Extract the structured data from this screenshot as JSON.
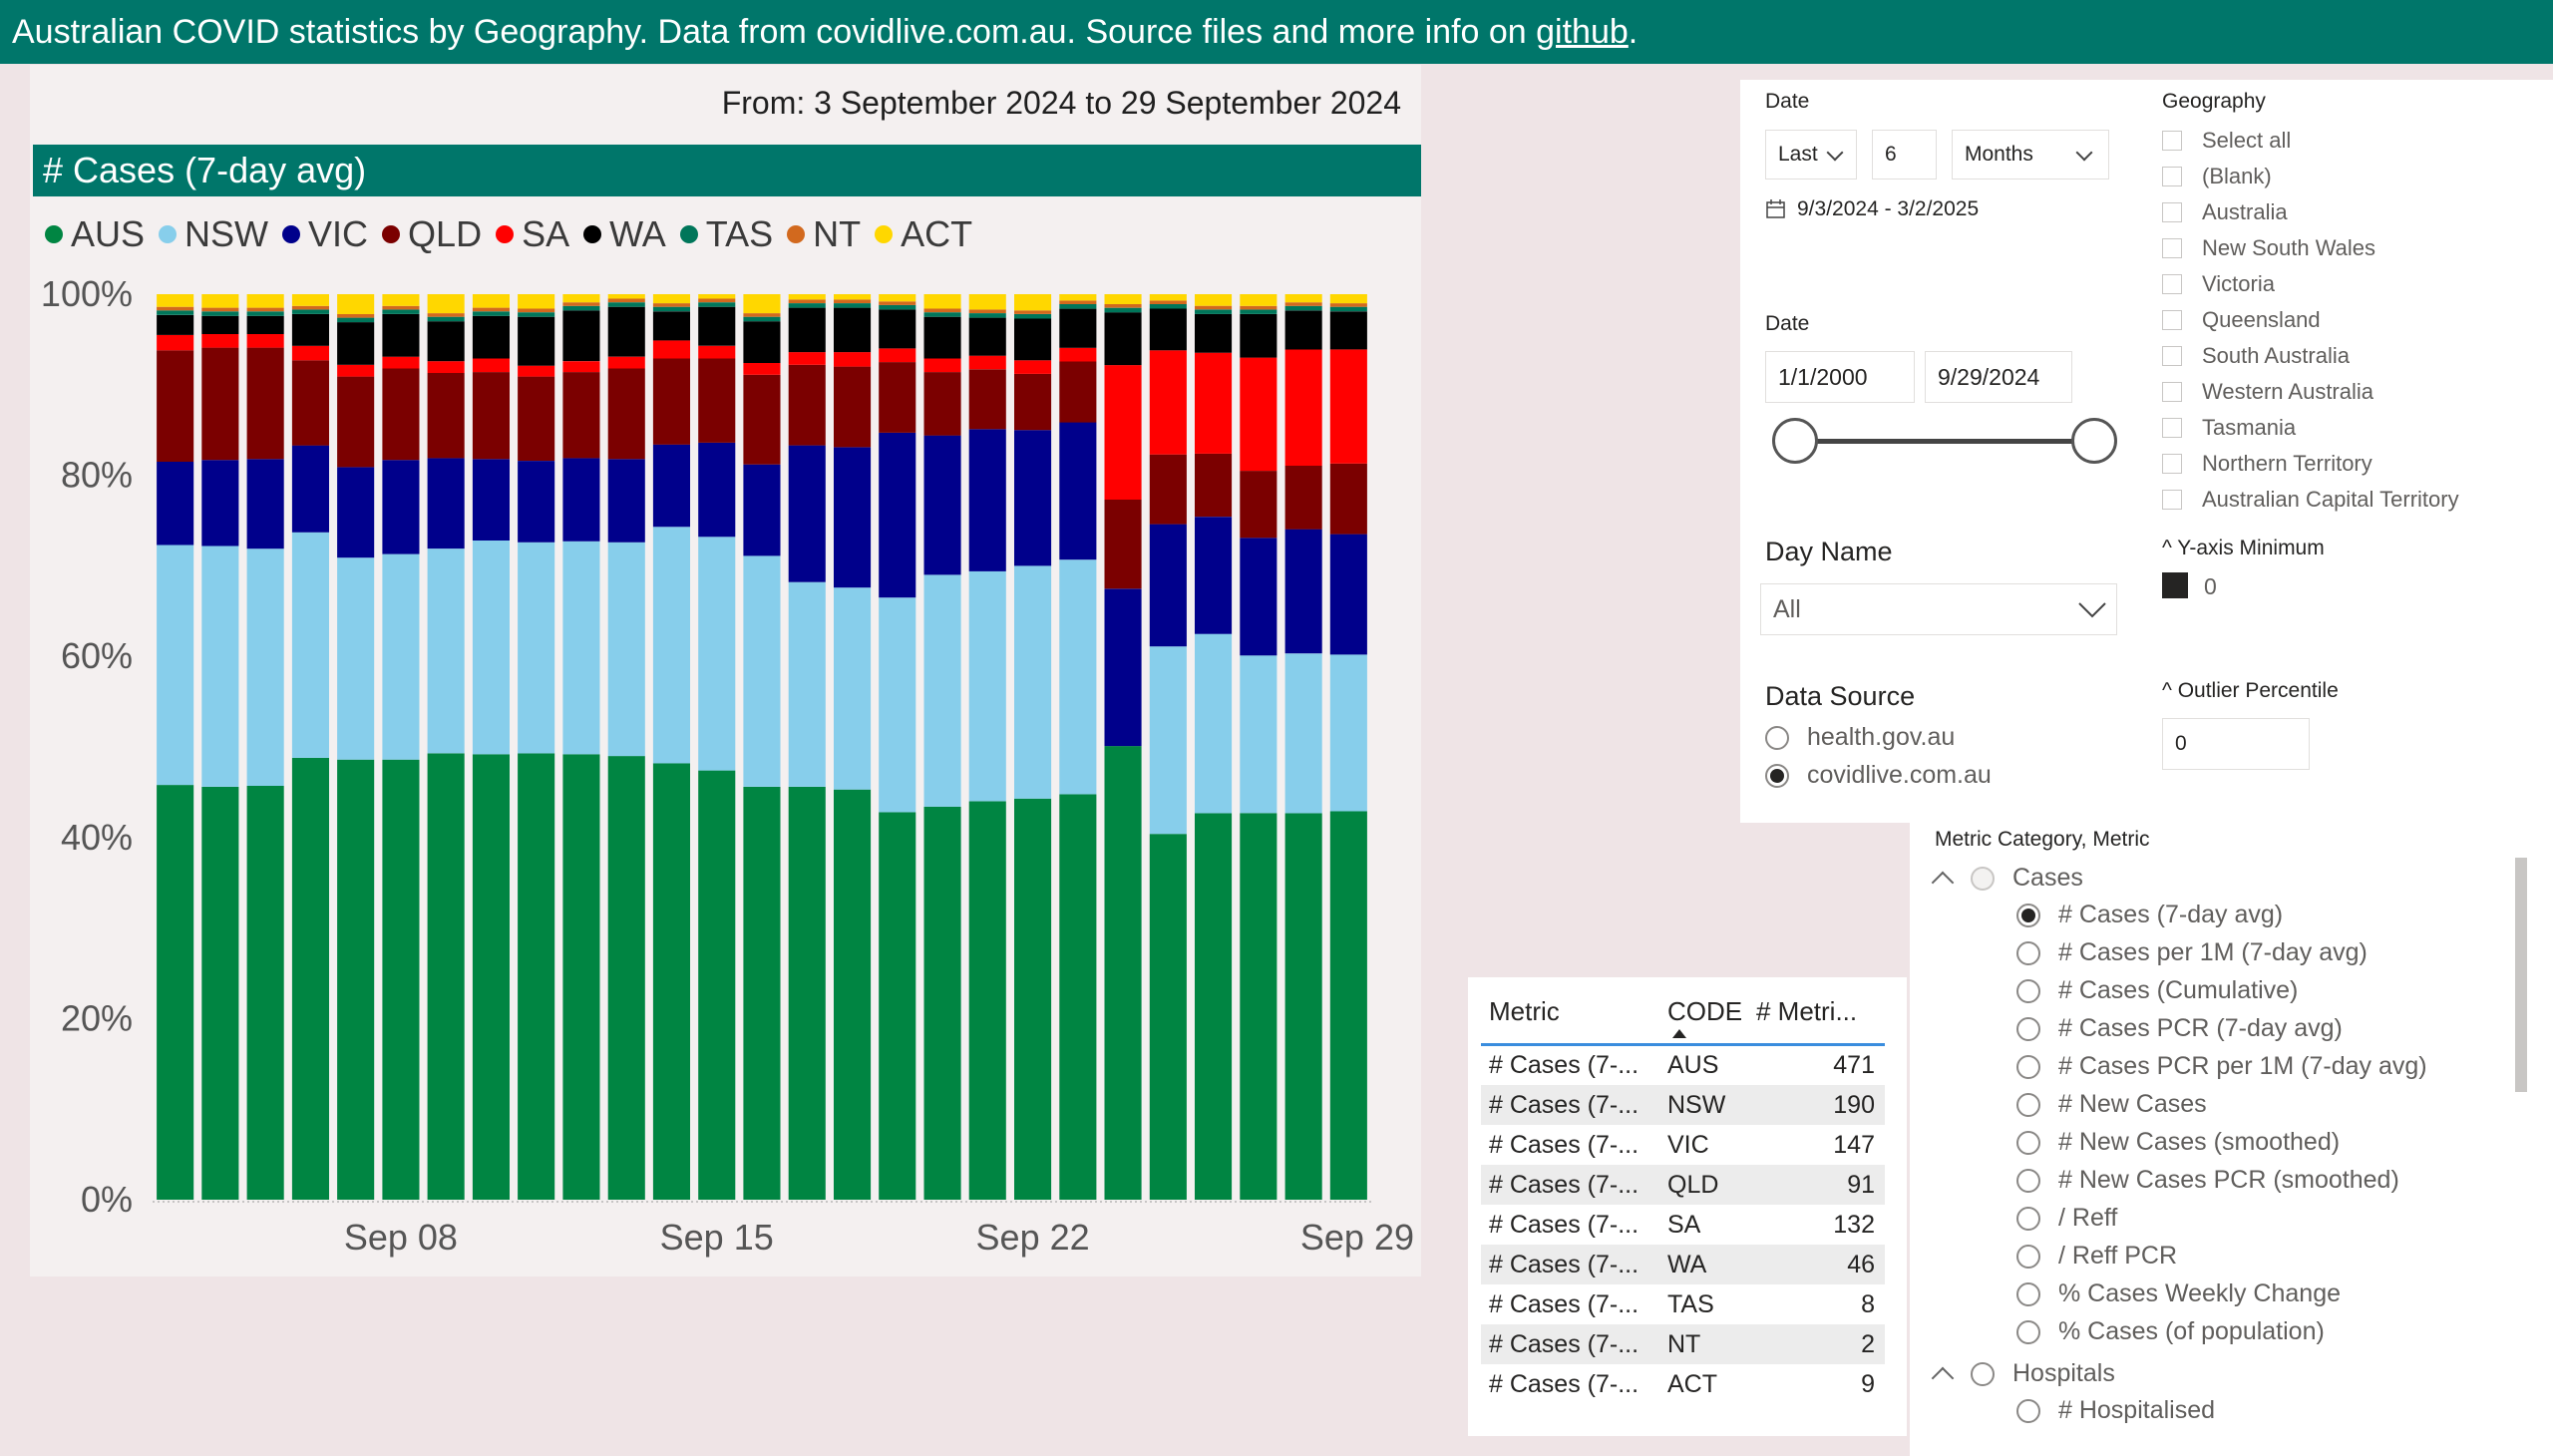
{
  "header": {
    "text": "Australian COVID statistics by Geography. Data from covidlive.com.au. Source files and more info on ",
    "link": "github",
    "suffix": "."
  },
  "chart_header": {
    "daterange": "From: 3 September 2024 to 29 September 2024",
    "title": "# Cases (7-day avg)"
  },
  "legend": [
    {
      "label": "AUS",
      "color": "#008542"
    },
    {
      "label": "NSW",
      "color": "#87ceeb"
    },
    {
      "label": "VIC",
      "color": "#00008b"
    },
    {
      "label": "QLD",
      "color": "#7b0000"
    },
    {
      "label": "SA",
      "color": "#ff0000"
    },
    {
      "label": "WA",
      "color": "#000000"
    },
    {
      "label": "TAS",
      "color": "#00765a"
    },
    {
      "label": "NT",
      "color": "#d2691e"
    },
    {
      "label": "ACT",
      "color": "#ffd700"
    }
  ],
  "chart_data": {
    "type": "bar",
    "stacked": true,
    "normalized": true,
    "categories": [
      "Sep 03",
      "Sep 04",
      "Sep 05",
      "Sep 06",
      "Sep 07",
      "Sep 08",
      "Sep 09",
      "Sep 10",
      "Sep 11",
      "Sep 12",
      "Sep 13",
      "Sep 14",
      "Sep 15",
      "Sep 16",
      "Sep 17",
      "Sep 18",
      "Sep 19",
      "Sep 20",
      "Sep 21",
      "Sep 22",
      "Sep 23",
      "Sep 24",
      "Sep 25",
      "Sep 26",
      "Sep 27",
      "Sep 28",
      "Sep 29"
    ],
    "x_ticks": [
      "Sep 08",
      "Sep 15",
      "Sep 22",
      "Sep 29"
    ],
    "y_ticks": [
      "0%",
      "20%",
      "40%",
      "60%",
      "80%",
      "100%"
    ],
    "ylim": [
      0,
      100
    ],
    "series": [
      {
        "name": "AUS",
        "values": [
          45.8,
          45.6,
          45.7,
          48.8,
          48.6,
          48.6,
          49.3,
          49.2,
          49.3,
          49.2,
          49.0,
          48.2,
          47.4,
          45.6,
          45.6,
          45.3,
          42.8,
          43.4,
          44.0,
          44.3,
          44.6,
          49.9,
          40.4,
          42.9,
          42.7,
          42.6,
          42.9
        ]
      },
      {
        "name": "NSW",
        "values": [
          26.5,
          26.6,
          26.2,
          24.9,
          22.3,
          22.7,
          22.6,
          23.6,
          23.3,
          23.5,
          23.6,
          26.1,
          25.8,
          25.5,
          22.6,
          22.3,
          23.7,
          25.6,
          25.4,
          25.7,
          25.8,
          0,
          20.7,
          19.9,
          17.4,
          17.6,
          17.3
        ]
      },
      {
        "name": "VIC",
        "values": [
          9.2,
          9.5,
          9.9,
          9.6,
          10.0,
          10.4,
          10.0,
          9.0,
          9.0,
          9.2,
          9.2,
          9.1,
          10.4,
          10.1,
          15.1,
          15.5,
          18.2,
          15.4,
          15.7,
          15.0,
          15.1,
          17.3,
          13.5,
          13.0,
          13.0,
          13.7,
          13.3
        ]
      },
      {
        "name": "QLD",
        "values": [
          12.3,
          12.4,
          12.3,
          9.4,
          10.0,
          10.1,
          9.4,
          9.6,
          9.3,
          9.5,
          10.0,
          9.5,
          9.3,
          9.9,
          8.9,
          8.9,
          7.8,
          7.0,
          6.6,
          6.2,
          6.7,
          9.8,
          7.7,
          7.0,
          7.4,
          7.0,
          7.8
        ]
      },
      {
        "name": "SA",
        "values": [
          1.7,
          1.5,
          1.5,
          1.6,
          1.3,
          1.3,
          1.3,
          1.5,
          1.2,
          1.2,
          1.3,
          2.0,
          1.4,
          1.3,
          1.4,
          1.6,
          1.5,
          1.5,
          1.5,
          1.5,
          1.5,
          14.8,
          11.5,
          11.2,
          12.5,
          12.8,
          12.6
        ]
      },
      {
        "name": "WA",
        "values": [
          2.2,
          2.0,
          2.0,
          3.5,
          4.7,
          4.7,
          4.4,
          4.7,
          5.4,
          5.6,
          5.5,
          3.2,
          4.3,
          4.6,
          4.9,
          4.9,
          4.3,
          4.6,
          4.2,
          4.6,
          4.3,
          5.8,
          4.6,
          4.3,
          4.8,
          4.3,
          4.2
        ]
      },
      {
        "name": "TAS",
        "values": [
          0.5,
          0.5,
          0.5,
          0.5,
          0.5,
          0.5,
          0.5,
          0.5,
          0.5,
          0.5,
          0.5,
          0.5,
          0.5,
          0.5,
          0.5,
          0.5,
          0.5,
          0.5,
          0.5,
          0.5,
          0.5,
          0.5,
          0.5,
          0.5,
          0.5,
          0.5,
          0.5
        ]
      },
      {
        "name": "NT",
        "values": [
          0.4,
          0.4,
          0.4,
          0.4,
          0.4,
          0.4,
          0.4,
          0.4,
          0.4,
          0.4,
          0.4,
          0.4,
          0.4,
          0.4,
          0.4,
          0.4,
          0.4,
          0.4,
          0.4,
          0.4,
          0.4,
          0.4,
          0.4,
          0.4,
          0.4,
          0.4,
          0.4
        ]
      },
      {
        "name": "ACT",
        "values": [
          1.4,
          1.5,
          1.5,
          1.3,
          2.2,
          1.3,
          2.1,
          1.5,
          1.6,
          0.9,
          0.5,
          1.0,
          0.5,
          2.1,
          0.6,
          0.6,
          0.8,
          1.6,
          1.7,
          1.8,
          0.7,
          1.1,
          0.7,
          1.3,
          1.3,
          0.9,
          1.0
        ]
      }
    ]
  },
  "slicers": {
    "date_rel": {
      "label": "Date",
      "mode": "Last",
      "count": "6",
      "unit": "Months",
      "range_text": "9/3/2024 - 3/2/2025"
    },
    "date_between": {
      "label": "Date",
      "start": "1/1/2000",
      "end": "9/29/2024"
    },
    "day_name": {
      "label": "Day Name",
      "value": "All"
    },
    "data_source": {
      "label": "Data Source",
      "options": [
        {
          "label": "health.gov.au",
          "selected": false
        },
        {
          "label": "covidlive.com.au",
          "selected": true
        }
      ]
    },
    "geography": {
      "label": "Geography",
      "options": [
        "Select all",
        "(Blank)",
        "Australia",
        "New South Wales",
        "Victoria",
        "Queensland",
        "South Australia",
        "Western Australia",
        "Tasmania",
        "Northern Territory",
        "Australian Capital Territory"
      ]
    },
    "y_axis_min": {
      "label": "^ Y-axis Minimum",
      "value": "0"
    },
    "outlier": {
      "label": "^ Outlier Percentile",
      "value": "0"
    }
  },
  "table": {
    "headers": [
      "Metric",
      "CODE",
      "# Metri..."
    ],
    "rows": [
      {
        "metric": "# Cases (7-...",
        "code": "AUS",
        "value": "471"
      },
      {
        "metric": "# Cases (7-...",
        "code": "NSW",
        "value": "190"
      },
      {
        "metric": "# Cases (7-...",
        "code": "VIC",
        "value": "147"
      },
      {
        "metric": "# Cases (7-...",
        "code": "QLD",
        "value": "91"
      },
      {
        "metric": "# Cases (7-...",
        "code": "SA",
        "value": "132"
      },
      {
        "metric": "# Cases (7-...",
        "code": "WA",
        "value": "46"
      },
      {
        "metric": "# Cases (7-...",
        "code": "TAS",
        "value": "8"
      },
      {
        "metric": "# Cases (7-...",
        "code": "NT",
        "value": "2"
      },
      {
        "metric": "# Cases (7-...",
        "code": "ACT",
        "value": "9"
      }
    ]
  },
  "metric_slicer": {
    "label": "Metric Category, Metric",
    "category1": "Cases",
    "items": [
      {
        "label": "# Cases (7-day avg)",
        "selected": true
      },
      {
        "label": "# Cases per 1M (7-day avg)",
        "selected": false
      },
      {
        "label": "# Cases (Cumulative)",
        "selected": false
      },
      {
        "label": "# Cases PCR (7-day avg)",
        "selected": false
      },
      {
        "label": "# Cases PCR per 1M (7-day avg)",
        "selected": false
      },
      {
        "label": "# New Cases",
        "selected": false
      },
      {
        "label": "# New Cases (smoothed)",
        "selected": false
      },
      {
        "label": "# New Cases PCR (smoothed)",
        "selected": false
      },
      {
        "label": "/ Reff",
        "selected": false
      },
      {
        "label": "/ Reff PCR",
        "selected": false
      },
      {
        "label": "% Cases Weekly Change",
        "selected": false
      },
      {
        "label": "% Cases (of population)",
        "selected": false
      }
    ],
    "category2": "Hospitals",
    "category2_items": [
      "# Hospitalised"
    ]
  }
}
